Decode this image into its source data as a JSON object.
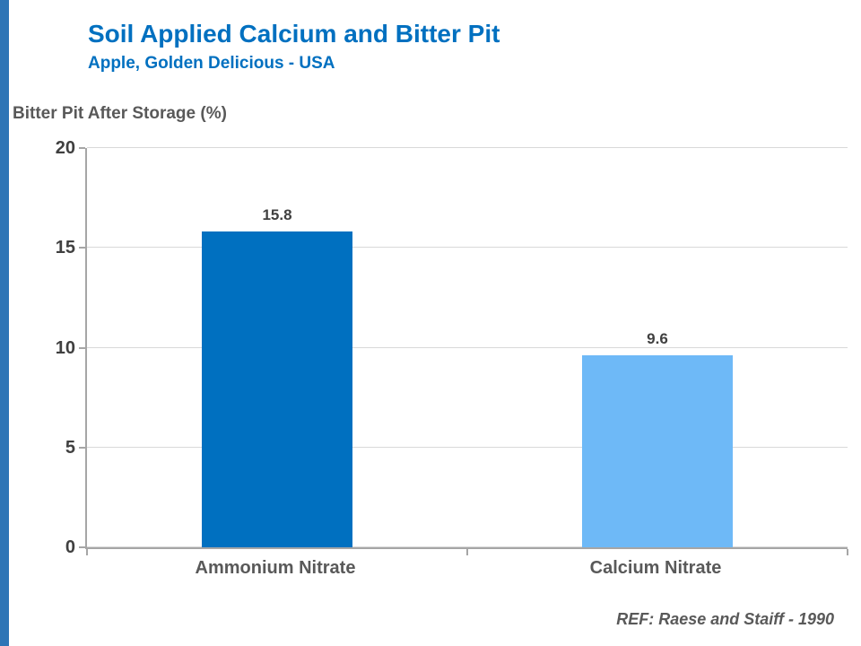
{
  "header": {
    "title": "Soil Applied Calcium and Bitter Pit",
    "subtitle": "Apple, Golden Delicious - USA"
  },
  "colors": {
    "title_blue": "#0070C0",
    "accent_strip": "#2E75B6",
    "bar_dark": "#0070C0",
    "bar_light": "#6EB9F7",
    "gridline": "#D9D9D9",
    "axis": "#A6A6A6",
    "text_dark": "#404040",
    "text_gray": "#595959"
  },
  "chart_data": {
    "type": "bar",
    "title": "Soil Applied Calcium and Bitter Pit",
    "subtitle": "Apple, Golden Delicious - USA",
    "categories": [
      "Ammonium Nitrate",
      "Calcium Nitrate"
    ],
    "values": [
      15.8,
      9.6
    ],
    "data_labels": [
      "15.8",
      "9.6"
    ],
    "bar_colors": [
      "#0070C0",
      "#6EB9F7"
    ],
    "xlabel": "",
    "ylabel": "Bitter Pit After Storage (%)",
    "ylim": [
      0,
      20
    ],
    "yticks": [
      0,
      5,
      10,
      15,
      20
    ],
    "grid": "horizontal",
    "legend": "none",
    "annotation": "REF: Raese and Staiff - 1990"
  }
}
